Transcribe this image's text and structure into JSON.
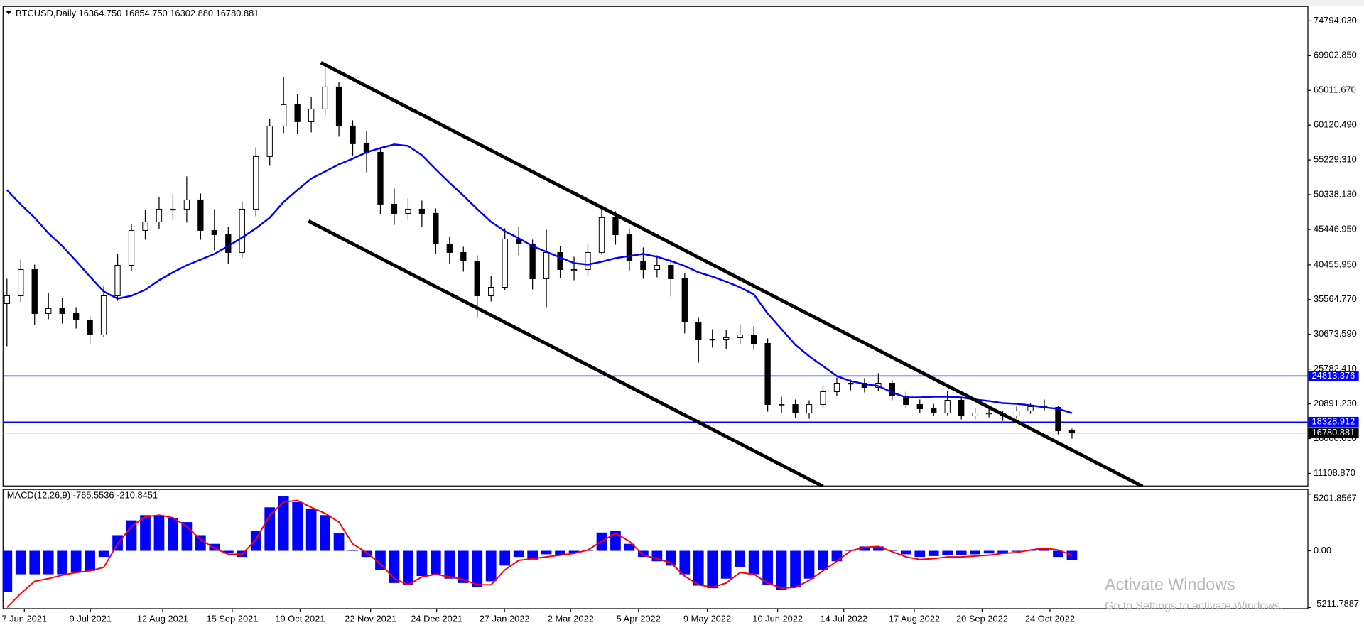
{
  "chart_data": {
    "type": "candlestick",
    "title": "BTCUSD,Daily  16364.750 16854.750 16302.880 16780.881",
    "open": [
      35000,
      36100,
      39800,
      33600,
      34300,
      33600,
      32700,
      30600,
      36100,
      40400,
      45300,
      46500,
      48300,
      48300,
      49600,
      45300,
      44700,
      42200,
      48300,
      55700,
      60000,
      63000,
      60600,
      62400,
      65500,
      60000,
      57500,
      56300,
      49000,
      47700,
      48300,
      47700,
      43400,
      42200,
      41000,
      36100,
      37300,
      44100,
      43400,
      38500,
      42200,
      39800,
      39800,
      42200,
      47100,
      44700,
      41000,
      39800,
      40400,
      38500,
      32400,
      30000,
      30000,
      30200,
      30600,
      29400,
      20800,
      20800,
      19600,
      20800,
      22600,
      23800,
      23800,
      23200,
      23800,
      22000,
      20800,
      20200,
      19600,
      21400,
      19200,
      19600,
      19600,
      19200,
      19900,
      20500,
      20400,
      17100
    ],
    "high": [
      38500,
      41200,
      40500,
      36500,
      35800,
      34500,
      33300,
      37400,
      42000,
      46200,
      48200,
      50000,
      50300,
      52900,
      50500,
      48300,
      45800,
      49400,
      57000,
      61000,
      66900,
      64500,
      64100,
      69000,
      66200,
      60800,
      59300,
      57000,
      51200,
      49800,
      49500,
      48400,
      44400,
      43000,
      41800,
      38900,
      45600,
      45800,
      44000,
      45400,
      43100,
      41600,
      43500,
      48200,
      48000,
      45600,
      42900,
      41800,
      41200,
      39300,
      33000,
      31400,
      31300,
      32100,
      31800,
      30100,
      21900,
      21500,
      21400,
      23500,
      24600,
      24300,
      24500,
      25200,
      24200,
      22600,
      21500,
      20900,
      22700,
      21800,
      20300,
      20200,
      19900,
      20500,
      21000,
      21500,
      20600,
      17400
    ],
    "low": [
      29000,
      35200,
      32000,
      32800,
      32200,
      31500,
      29300,
      30300,
      35400,
      39600,
      44000,
      45500,
      46800,
      46400,
      44000,
      42500,
      40600,
      41500,
      47300,
      54400,
      59000,
      58900,
      59100,
      61500,
      58500,
      55800,
      53500,
      47600,
      46100,
      46800,
      45800,
      42000,
      40600,
      39500,
      33000,
      35300,
      36900,
      41800,
      37000,
      34500,
      38600,
      38300,
      39000,
      41900,
      43300,
      39600,
      38500,
      38700,
      36000,
      30800,
      26700,
      28800,
      28600,
      29300,
      28500,
      19800,
      19600,
      18900,
      18800,
      20300,
      22000,
      22800,
      22500,
      22700,
      21400,
      20300,
      19600,
      19200,
      19300,
      18700,
      18700,
      19000,
      18500,
      18800,
      19500,
      19900,
      16600,
      16000
    ],
    "close": [
      36100,
      39800,
      33600,
      34300,
      33600,
      32700,
      30600,
      36100,
      40400,
      45300,
      46500,
      48300,
      48300,
      49600,
      45300,
      44700,
      42200,
      48300,
      55700,
      60000,
      63000,
      60600,
      62400,
      65500,
      60000,
      57500,
      56300,
      49000,
      47700,
      48300,
      47700,
      43400,
      42200,
      41000,
      36100,
      37300,
      44100,
      43400,
      38500,
      42200,
      39800,
      39800,
      42200,
      47100,
      44700,
      41000,
      39800,
      40400,
      38500,
      32400,
      30000,
      30000,
      30200,
      30600,
      29400,
      20800,
      20800,
      19600,
      20800,
      22600,
      23800,
      23800,
      23200,
      23800,
      22000,
      20800,
      20200,
      19600,
      21400,
      19200,
      19600,
      19600,
      19200,
      19900,
      20500,
      20400,
      17100,
      16800
    ],
    "up_color": "#ffffff",
    "down_color": "#000000",
    "wick_color": "#000000",
    "ma": {
      "color": "#0000ff",
      "values": [
        51000,
        48950,
        47100,
        44900,
        43100,
        41000,
        38800,
        36700,
        35700,
        36100,
        36950,
        38300,
        39400,
        40400,
        41200,
        42000,
        43100,
        44300,
        45600,
        47100,
        49300,
        51000,
        52600,
        53600,
        54600,
        55400,
        56300,
        56900,
        57400,
        57200,
        55900,
        53900,
        52000,
        50200,
        48300,
        46500,
        45200,
        44200,
        43100,
        42300,
        41500,
        40700,
        40500,
        40900,
        41400,
        41700,
        42000,
        41600,
        41000,
        40300,
        39400,
        38800,
        38100,
        37300,
        36300,
        33600,
        31400,
        29200,
        27600,
        26200,
        24800,
        24100,
        23700,
        23400,
        22500,
        21800,
        21800,
        21900,
        21900,
        21800,
        21500,
        21300,
        21000,
        20900,
        20700,
        20400,
        20200,
        19600
      ]
    },
    "trendlines": [
      {
        "x": [
          22.7,
          82.1
        ],
        "y": [
          68915,
          9272
        ]
      },
      {
        "x": [
          21.8,
          59.0
        ],
        "y": [
          46626,
          9272
        ]
      }
    ],
    "trendline_color": "#000000",
    "levels": [
      {
        "value": 24813.376,
        "label": "24813.376"
      },
      {
        "value": 18328.912,
        "label": "18328.912"
      }
    ],
    "level_color": "#0000ff",
    "current_price": {
      "value": 16780.881,
      "label": "16780.881"
    },
    "ylim": [
      9272,
      76876
    ],
    "yticks": [
      {
        "value": 74794.03,
        "label": "74794.030"
      },
      {
        "value": 69902.85,
        "label": "69902.850"
      },
      {
        "value": 65011.67,
        "label": "65011.670"
      },
      {
        "value": 60120.49,
        "label": "60120.490"
      },
      {
        "value": 55229.31,
        "label": "55229.310"
      },
      {
        "value": 50338.13,
        "label": "50338.130"
      },
      {
        "value": 45446.95,
        "label": "45446.950"
      },
      {
        "value": 40455.95,
        "label": "40455.950"
      },
      {
        "value": 35564.77,
        "label": "35564.770"
      },
      {
        "value": 30673.59,
        "label": "30673.590"
      },
      {
        "value": 25782.41,
        "label": "25782.410"
      },
      {
        "value": 20891.23,
        "label": "20891.230"
      },
      {
        "value": 16000.05,
        "label": "16000.050"
      },
      {
        "value": 11108.87,
        "label": "11108.870"
      }
    ],
    "date_labels": [
      "7 Jun 2021",
      "9 Jul 2021",
      "12 Aug 2021",
      "15 Sep 2021",
      "19 Oct 2021",
      "22 Nov 2021",
      "24 Dec 2021",
      "27 Jan 2022",
      "2 Mar 2022",
      "5 Apr 2022",
      "9 May 2022",
      "10 Jun 2022",
      "14 Jul 2022",
      "17 Aug 2022",
      "20 Sep 2022",
      "24 Oct 2022"
    ],
    "macd": {
      "title": "MACD(12,26,9) -765.5536 -210.8451",
      "hist_color": "#0000ff",
      "signal_color": "#ff0000",
      "histogram": [
        -3760,
        -2160,
        -2160,
        -2160,
        -2160,
        -2000,
        -1840,
        -560,
        1440,
        2800,
        3280,
        3280,
        3040,
        2640,
        1440,
        640,
        -160,
        -560,
        1840,
        4000,
        5040,
        4480,
        3840,
        3280,
        1600,
        80,
        -560,
        -1760,
        -2960,
        -3120,
        -2320,
        -2160,
        -2560,
        -2960,
        -3360,
        -2800,
        -1360,
        -560,
        -800,
        -320,
        -400,
        -160,
        80,
        1680,
        1840,
        640,
        -560,
        -960,
        -1360,
        -2160,
        -3200,
        -3440,
        -2560,
        -1520,
        -2160,
        -3120,
        -3600,
        -3360,
        -2560,
        -1760,
        -960,
        80,
        400,
        400,
        80,
        -320,
        -560,
        -480,
        -400,
        -400,
        -320,
        -240,
        -160,
        -80,
        80,
        160,
        -560,
        -880
      ],
      "signal": [
        -5200,
        -3920,
        -2800,
        -2560,
        -2240,
        -2000,
        -1840,
        -1520,
        640,
        2240,
        3120,
        3280,
        3040,
        2240,
        1040,
        240,
        -320,
        -320,
        1040,
        3280,
        4480,
        4640,
        4000,
        3440,
        2640,
        640,
        -160,
        -1200,
        -2560,
        -3120,
        -2400,
        -2160,
        -2400,
        -2640,
        -3120,
        -3120,
        -1760,
        -880,
        -720,
        -560,
        -400,
        -240,
        80,
        880,
        1600,
        880,
        -400,
        -720,
        -1120,
        -2320,
        -3120,
        -3360,
        -2960,
        -2000,
        -2160,
        -2960,
        -3440,
        -3360,
        -2720,
        -1840,
        -960,
        0,
        320,
        400,
        -80,
        -560,
        -800,
        -720,
        -560,
        -560,
        -480,
        -400,
        -240,
        -160,
        80,
        240,
        80,
        -400
      ],
      "ylim": [
        -5360,
        5680
      ],
      "yticks": [
        {
          "value": 5201.8567,
          "label": "5201.8567"
        },
        {
          "value": 0,
          "label": "0.00"
        },
        {
          "value": -5211.7887,
          "label": "-5211.7887"
        }
      ]
    }
  },
  "overlay": {
    "title": "Activate Windows",
    "subtitle": "Go to Settings to activate Windows."
  }
}
